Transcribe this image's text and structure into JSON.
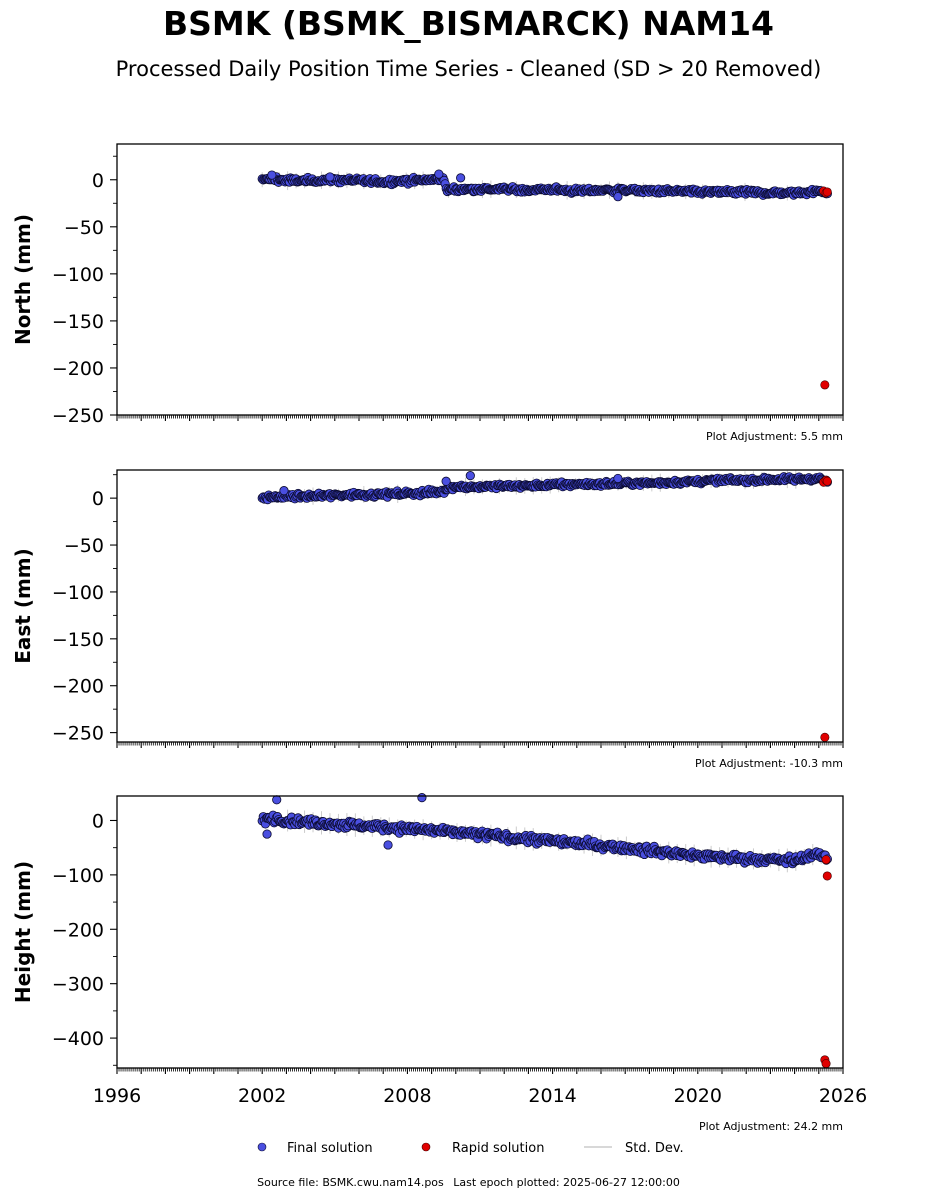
{
  "title": "BSMK (BSMK_BISMARCK) NAM14",
  "subtitle": "Processed Daily Position Time Series - Cleaned (SD > 20 Removed)",
  "footer": {
    "source": "Source file: BSMK.cwu.nam14.pos",
    "last_epoch": "Last epoch plotted: 2025-06-27 12:00:00"
  },
  "legend": {
    "final": "Final solution",
    "rapid": "Rapid solution",
    "std": "Std. Dev."
  },
  "colors": {
    "final_fill": "#4a4fe0",
    "final_edge": "#0b0b30",
    "rapid": "#e00000",
    "std": "#cccccc",
    "axis": "#000000"
  },
  "chart_data": [
    {
      "type": "scatter",
      "ylabel": "North (mm)",
      "adjustment": "Plot Adjustment: 5.5 mm",
      "xlim": [
        1996,
        2026
      ],
      "ylim": [
        -250,
        38
      ],
      "yticks": [
        0,
        -50,
        -100,
        -150,
        -200,
        -250
      ],
      "show_xtick_labels": false,
      "final_series": [
        [
          2002.0,
          0
        ],
        [
          2002.5,
          1
        ],
        [
          2003.0,
          -1
        ],
        [
          2004.0,
          -1
        ],
        [
          2005.0,
          0
        ],
        [
          2006.0,
          -1
        ],
        [
          2007.0,
          -2
        ],
        [
          2008.0,
          -1
        ],
        [
          2009.0,
          0
        ],
        [
          2009.5,
          2
        ],
        [
          2009.6,
          -11
        ],
        [
          2010.0,
          -10
        ],
        [
          2011.0,
          -10
        ],
        [
          2012.0,
          -10
        ],
        [
          2013.0,
          -11
        ],
        [
          2014.0,
          -10
        ],
        [
          2015.0,
          -12
        ],
        [
          2016.0,
          -11
        ],
        [
          2017.0,
          -11
        ],
        [
          2018.0,
          -12
        ],
        [
          2019.0,
          -12
        ],
        [
          2020.0,
          -13
        ],
        [
          2021.0,
          -13
        ],
        [
          2022.0,
          -13
        ],
        [
          2023.0,
          -14
        ],
        [
          2024.0,
          -14
        ],
        [
          2025.0,
          -12
        ],
        [
          2025.4,
          -14
        ]
      ],
      "final_outliers": [
        [
          2002.4,
          5
        ],
        [
          2004.8,
          3
        ],
        [
          2009.3,
          6
        ],
        [
          2010.2,
          2
        ],
        [
          2016.7,
          -18
        ]
      ],
      "rapid_series": [
        [
          2025.2,
          -12
        ],
        [
          2025.3,
          -14
        ],
        [
          2025.35,
          -13
        ],
        [
          2025.25,
          -218
        ]
      ]
    },
    {
      "type": "scatter",
      "ylabel": "East (mm)",
      "adjustment": "Plot Adjustment: -10.3 mm",
      "xlim": [
        1996,
        2026
      ],
      "ylim": [
        -260,
        30
      ],
      "yticks": [
        0,
        -50,
        -100,
        -150,
        -200,
        -250
      ],
      "show_xtick_labels": false,
      "final_series": [
        [
          2002.0,
          0
        ],
        [
          2003.0,
          2
        ],
        [
          2004.0,
          2
        ],
        [
          2005.0,
          3
        ],
        [
          2006.0,
          4
        ],
        [
          2007.0,
          4
        ],
        [
          2008.0,
          5
        ],
        [
          2009.0,
          6
        ],
        [
          2009.5,
          7
        ],
        [
          2009.7,
          12
        ],
        [
          2010.0,
          12
        ],
        [
          2011.0,
          12
        ],
        [
          2012.0,
          13
        ],
        [
          2013.0,
          13
        ],
        [
          2014.0,
          14
        ],
        [
          2015.0,
          15
        ],
        [
          2016.0,
          15
        ],
        [
          2017.0,
          16
        ],
        [
          2018.0,
          16
        ],
        [
          2019.0,
          17
        ],
        [
          2020.0,
          18
        ],
        [
          2021.0,
          19
        ],
        [
          2022.0,
          19
        ],
        [
          2023.0,
          20
        ],
        [
          2024.0,
          20
        ],
        [
          2025.0,
          21
        ],
        [
          2025.4,
          17
        ]
      ],
      "final_outliers": [
        [
          2009.6,
          18
        ],
        [
          2010.6,
          24
        ],
        [
          2002.9,
          8
        ],
        [
          2016.7,
          21
        ]
      ],
      "rapid_series": [
        [
          2025.2,
          17
        ],
        [
          2025.3,
          19
        ],
        [
          2025.35,
          18
        ],
        [
          2025.25,
          -255
        ]
      ]
    },
    {
      "type": "scatter",
      "ylabel": "Height (mm)",
      "adjustment": "Plot Adjustment: 24.2 mm",
      "xlim": [
        1996,
        2026
      ],
      "ylim": [
        -455,
        45
      ],
      "yticks": [
        0,
        -100,
        -200,
        -300,
        -400
      ],
      "show_xtick_labels": true,
      "xticks": [
        1996,
        2002,
        2008,
        2014,
        2020,
        2026
      ],
      "final_series": [
        [
          2002.0,
          0
        ],
        [
          2002.4,
          5
        ],
        [
          2003.0,
          0
        ],
        [
          2004.0,
          -3
        ],
        [
          2005.0,
          -6
        ],
        [
          2006.0,
          -9
        ],
        [
          2007.0,
          -12
        ],
        [
          2008.0,
          -15
        ],
        [
          2009.0,
          -18
        ],
        [
          2010.0,
          -22
        ],
        [
          2011.0,
          -26
        ],
        [
          2012.0,
          -30
        ],
        [
          2013.0,
          -34
        ],
        [
          2014.0,
          -38
        ],
        [
          2015.0,
          -42
        ],
        [
          2016.0,
          -46
        ],
        [
          2017.0,
          -50
        ],
        [
          2018.0,
          -55
        ],
        [
          2019.0,
          -60
        ],
        [
          2020.0,
          -65
        ],
        [
          2021.0,
          -68
        ],
        [
          2022.0,
          -70
        ],
        [
          2023.0,
          -72
        ],
        [
          2024.0,
          -74
        ],
        [
          2024.8,
          -62
        ],
        [
          2025.4,
          -70
        ]
      ],
      "final_outliers": [
        [
          2002.6,
          38
        ],
        [
          2008.6,
          42
        ],
        [
          2007.2,
          -45
        ],
        [
          2002.2,
          -25
        ]
      ],
      "rapid_series": [
        [
          2025.3,
          -72
        ],
        [
          2025.35,
          -102
        ],
        [
          2025.25,
          -440
        ],
        [
          2025.3,
          -447
        ]
      ]
    }
  ]
}
